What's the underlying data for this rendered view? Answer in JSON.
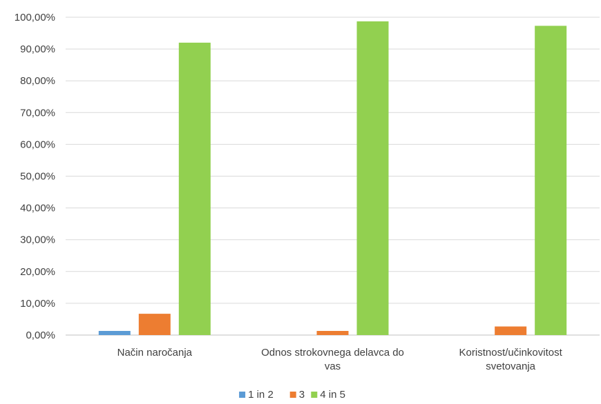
{
  "chart_data": {
    "type": "bar",
    "categories": [
      [
        "Način naročanja"
      ],
      [
        "Odnos strokovnega delavca do",
        "vas"
      ],
      [
        "Koristnost/učinkovitost",
        "svetovanja"
      ]
    ],
    "series": [
      {
        "name": "1 in 2",
        "color": "#5B9BD5",
        "values": [
          1.3,
          0,
          0
        ]
      },
      {
        "name": "3",
        "color": "#ED7D31",
        "values": [
          6.7,
          1.3,
          2.7
        ]
      },
      {
        "name": "4 in 5",
        "color": "#92D050",
        "values": [
          92.0,
          98.7,
          97.3
        ]
      }
    ],
    "yticks": [
      "0,00%",
      "10,00%",
      "20,00%",
      "30,00%",
      "40,00%",
      "50,00%",
      "60,00%",
      "70,00%",
      "80,00%",
      "90,00%",
      "100,00%"
    ],
    "ylim": [
      0,
      100
    ],
    "grid": true,
    "legend_position": "bottom"
  }
}
